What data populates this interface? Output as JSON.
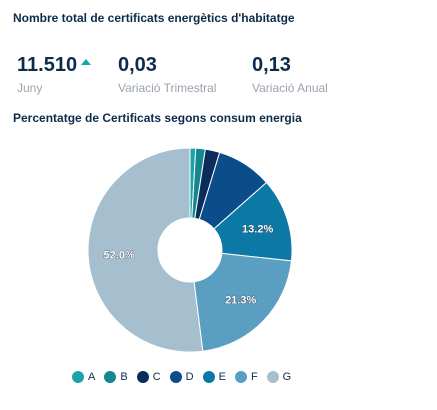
{
  "header": {
    "title": "Nombre total de certificats energètics d'habitatge"
  },
  "kpis": [
    {
      "value": "11.510",
      "label": "Juny",
      "trend": "up"
    },
    {
      "value": "0,03",
      "label": "Variació Trimestral"
    },
    {
      "value": "0,13",
      "label": "Variació Anual"
    }
  ],
  "chart_data": {
    "type": "pie",
    "variant": "donut",
    "title": "Percentatge de Certificats segons consum energia",
    "categories": [
      "A",
      "B",
      "C",
      "D",
      "E",
      "F",
      "G"
    ],
    "values": [
      0.9,
      1.5,
      2.3,
      8.8,
      13.2,
      21.3,
      52.0
    ],
    "data_labels": [
      "",
      "",
      "",
      "",
      "13.2%",
      "21.3%",
      "52.0%"
    ],
    "colors": [
      "#1aa3a8",
      "#15878f",
      "#0b2d5e",
      "#0a4d8a",
      "#0b78a5",
      "#5a9fc2",
      "#a5bfcf"
    ],
    "legend_position": "bottom",
    "trend_color": "#1aa3a8"
  }
}
